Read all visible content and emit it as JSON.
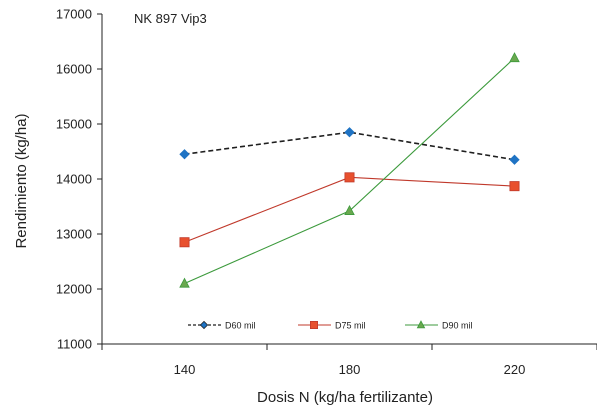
{
  "chart_data": {
    "type": "line",
    "title": "NK 897 Vip3",
    "xlabel": "Dosis N (kg/ha fertilizante)",
    "ylabel": "Rendimiento (kg/ha)",
    "categories": [
      "140",
      "180",
      "220"
    ],
    "ylim": [
      11000,
      17000
    ],
    "yticks": [
      "11000",
      "12000",
      "13000",
      "14000",
      "15000",
      "16000",
      "17000"
    ],
    "grid": false,
    "legend_position": "bottom",
    "series": [
      {
        "name": "D60 mil",
        "values": [
          14450,
          14850,
          14350
        ],
        "color": "#1f1f1f",
        "marker_color": "#1f73c4",
        "marker": "diamond",
        "dash": true
      },
      {
        "name": "D75 mil",
        "values": [
          12850,
          14030,
          13870
        ],
        "color": "#c0392b",
        "marker_color": "#e8502e",
        "marker": "square",
        "dash": false
      },
      {
        "name": "D90 mil",
        "values": [
          12100,
          13420,
          16200
        ],
        "color": "#3c9a3c",
        "marker_color": "#6aa84f",
        "marker": "triangle",
        "dash": false
      }
    ]
  }
}
